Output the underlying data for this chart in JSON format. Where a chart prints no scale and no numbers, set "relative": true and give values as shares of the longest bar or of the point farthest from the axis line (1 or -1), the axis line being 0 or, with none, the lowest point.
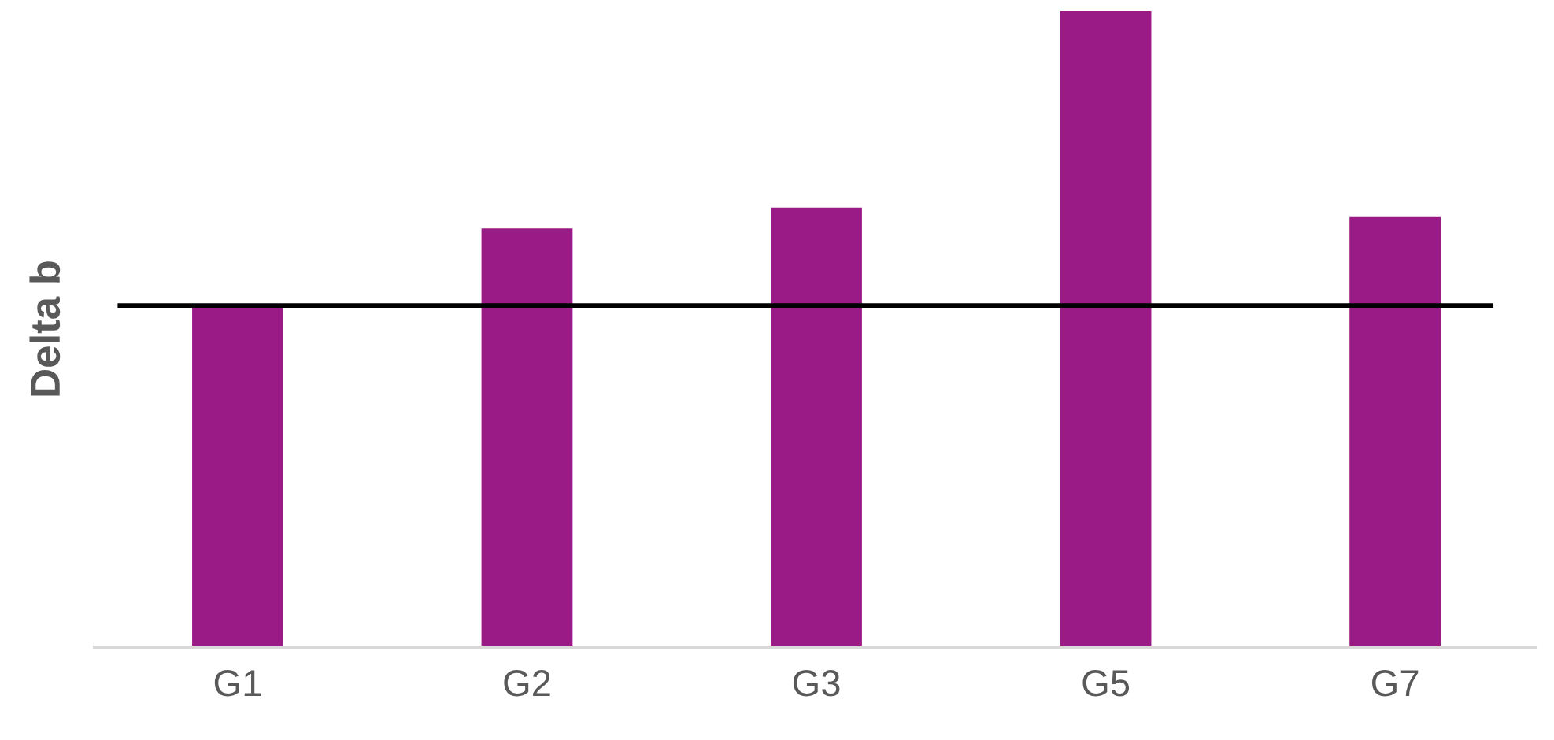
{
  "chart_data": {
    "type": "bar",
    "ylabel": "Delta b",
    "relative": true,
    "categories": [
      "G1",
      "G2",
      "G3",
      "G5",
      "G7"
    ],
    "values": [
      0.537,
      0.658,
      0.691,
      1,
      0.676
    ],
    "color": "#9b1b86",
    "ref_lines": [
      {
        "axis": "y",
        "value": 0.537,
        "color": "#000000"
      }
    ],
    "grid": false,
    "legend": false
  }
}
